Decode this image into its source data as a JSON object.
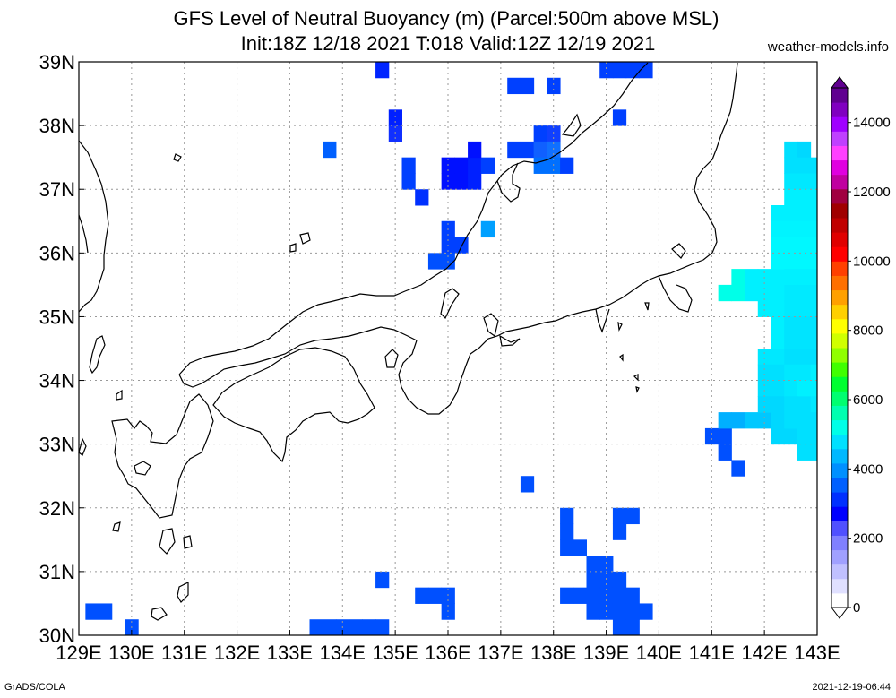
{
  "title_line1": "GFS Level of Neutral Buoyancy (m) (Parcel:500m above MSL)",
  "title_line2": "Init:18Z 12/18 2021 T:018 Valid:12Z 12/19 2021",
  "site": "weather-models.info",
  "footer_left": "GrADS/COLA",
  "footer_right": "2021-12-19-06:44",
  "map": {
    "lon_range": [
      129,
      143
    ],
    "lat_range": [
      30,
      39
    ],
    "lon_labels": [
      "129E",
      "130E",
      "131E",
      "132E",
      "133E",
      "134E",
      "135E",
      "136E",
      "137E",
      "138E",
      "139E",
      "140E",
      "141E",
      "142E",
      "143E"
    ],
    "lat_labels": [
      "30N",
      "31N",
      "32N",
      "33N",
      "34N",
      "35N",
      "36N",
      "37N",
      "38N",
      "39N"
    ],
    "grid": "dotted"
  },
  "colorbar": {
    "unit": "m",
    "labels": [
      "0",
      "2000",
      "4000",
      "6000",
      "8000",
      "10000",
      "12000",
      "14000"
    ],
    "colors": [
      "#ffffff",
      "#e0e0ff",
      "#c0c0ff",
      "#a0a0ff",
      "#8080ff",
      "#5050ff",
      "#0000ff",
      "#0030ff",
      "#0060ff",
      "#0090ff",
      "#00b8ff",
      "#00e0ff",
      "#00ffe8",
      "#00ffb0",
      "#00ff70",
      "#00ff30",
      "#40ff00",
      "#90ff00",
      "#d0ff00",
      "#ffff00",
      "#ffd000",
      "#ffa000",
      "#ff7000",
      "#ff4000",
      "#ff0000",
      "#e00000",
      "#c00000",
      "#a00000",
      "#a00040",
      "#c000a0",
      "#e000e0",
      "#ff40ff",
      "#c040ff",
      "#a000ff",
      "#8000c0",
      "#600090"
    ]
  },
  "cells": [
    {
      "lon": 134.75,
      "lat": 38.875,
      "c": "#0024ff"
    },
    {
      "lon": 137.25,
      "lat": 38.625,
      "c": "#0040ff"
    },
    {
      "lon": 137.5,
      "lat": 38.625,
      "c": "#0040ff"
    },
    {
      "lon": 138.0,
      "lat": 38.625,
      "c": "#0040ff"
    },
    {
      "lon": 139.0,
      "lat": 38.875,
      "c": "#0040ff"
    },
    {
      "lon": 139.25,
      "lat": 38.875,
      "c": "#0040ff"
    },
    {
      "lon": 139.5,
      "lat": 38.875,
      "c": "#0040ff"
    },
    {
      "lon": 139.75,
      "lat": 38.875,
      "c": "#0040ff"
    },
    {
      "lon": 135.0,
      "lat": 38.125,
      "c": "#0020ff"
    },
    {
      "lon": 135.0,
      "lat": 37.875,
      "c": "#1030ff"
    },
    {
      "lon": 139.25,
      "lat": 38.125,
      "c": "#0040ff"
    },
    {
      "lon": 133.75,
      "lat": 37.625,
      "c": "#0060ff"
    },
    {
      "lon": 135.25,
      "lat": 37.375,
      "c": "#0040ff"
    },
    {
      "lon": 135.25,
      "lat": 37.125,
      "c": "#0040ff"
    },
    {
      "lon": 135.5,
      "lat": 36.875,
      "c": "#0030ff"
    },
    {
      "lon": 136.0,
      "lat": 37.375,
      "c": "#0010ff"
    },
    {
      "lon": 136.0,
      "lat": 37.125,
      "c": "#0010ff"
    },
    {
      "lon": 136.25,
      "lat": 37.375,
      "c": "#0010ff"
    },
    {
      "lon": 136.25,
      "lat": 37.125,
      "c": "#0010ff"
    },
    {
      "lon": 136.5,
      "lat": 37.375,
      "c": "#0020ff"
    },
    {
      "lon": 136.5,
      "lat": 37.125,
      "c": "#0020ff"
    },
    {
      "lon": 136.75,
      "lat": 37.375,
      "c": "#0040ff"
    },
    {
      "lon": 136.5,
      "lat": 37.625,
      "c": "#0010ff"
    },
    {
      "lon": 137.25,
      "lat": 37.625,
      "c": "#0040ff"
    },
    {
      "lon": 137.5,
      "lat": 37.625,
      "c": "#0040ff"
    },
    {
      "lon": 137.75,
      "lat": 37.875,
      "c": "#0040ff"
    },
    {
      "lon": 138.0,
      "lat": 37.875,
      "c": "#1040ff"
    },
    {
      "lon": 137.75,
      "lat": 37.625,
      "c": "#1060ff"
    },
    {
      "lon": 138.0,
      "lat": 37.625,
      "c": "#1070ff"
    },
    {
      "lon": 137.75,
      "lat": 37.375,
      "c": "#0070ff"
    },
    {
      "lon": 138.0,
      "lat": 37.375,
      "c": "#0070ff"
    },
    {
      "lon": 138.25,
      "lat": 37.375,
      "c": "#0040ff"
    },
    {
      "lon": 136.0,
      "lat": 36.375,
      "c": "#0040ff"
    },
    {
      "lon": 136.0,
      "lat": 36.125,
      "c": "#0040ff"
    },
    {
      "lon": 136.25,
      "lat": 36.125,
      "c": "#0040ff"
    },
    {
      "lon": 135.75,
      "lat": 35.875,
      "c": "#0050ff"
    },
    {
      "lon": 136.0,
      "lat": 35.875,
      "c": "#0050ff"
    },
    {
      "lon": 136.75,
      "lat": 36.375,
      "c": "#00a0ff"
    },
    {
      "lon": 133.5,
      "lat": 30.125,
      "c": "#0050ff"
    },
    {
      "lon": 133.75,
      "lat": 30.125,
      "c": "#0050ff"
    },
    {
      "lon": 134.0,
      "lat": 30.125,
      "c": "#0050ff"
    },
    {
      "lon": 134.25,
      "lat": 30.125,
      "c": "#0050ff"
    },
    {
      "lon": 134.5,
      "lat": 30.125,
      "c": "#0050ff"
    },
    {
      "lon": 134.75,
      "lat": 30.125,
      "c": "#0050ff"
    },
    {
      "lon": 129.25,
      "lat": 30.375,
      "c": "#0050ff"
    },
    {
      "lon": 129.5,
      "lat": 30.375,
      "c": "#0050ff"
    },
    {
      "lon": 130.0,
      "lat": 30.125,
      "c": "#0050ff"
    },
    {
      "lon": 134.75,
      "lat": 30.875,
      "c": "#0050ff"
    },
    {
      "lon": 135.5,
      "lat": 30.625,
      "c": "#0050ff"
    },
    {
      "lon": 135.75,
      "lat": 30.625,
      "c": "#0050ff"
    },
    {
      "lon": 136.0,
      "lat": 30.625,
      "c": "#0050ff"
    },
    {
      "lon": 136.0,
      "lat": 30.375,
      "c": "#0050ff"
    },
    {
      "lon": 138.25,
      "lat": 30.625,
      "c": "#0050ff"
    },
    {
      "lon": 138.5,
      "lat": 30.625,
      "c": "#0050ff"
    },
    {
      "lon": 138.75,
      "lat": 30.625,
      "c": "#0050ff"
    },
    {
      "lon": 138.75,
      "lat": 30.375,
      "c": "#0050ff"
    },
    {
      "lon": 139.0,
      "lat": 30.375,
      "c": "#0050ff"
    },
    {
      "lon": 138.75,
      "lat": 31.125,
      "c": "#0050ff"
    },
    {
      "lon": 139.0,
      "lat": 31.125,
      "c": "#0050ff"
    },
    {
      "lon": 138.75,
      "lat": 30.875,
      "c": "#0050ff"
    },
    {
      "lon": 139.0,
      "lat": 30.875,
      "c": "#0050ff"
    },
    {
      "lon": 139.25,
      "lat": 30.875,
      "c": "#0050ff"
    },
    {
      "lon": 139.0,
      "lat": 30.625,
      "c": "#0050ff"
    },
    {
      "lon": 139.25,
      "lat": 30.625,
      "c": "#0050ff"
    },
    {
      "lon": 139.5,
      "lat": 30.625,
      "c": "#0050ff"
    },
    {
      "lon": 139.25,
      "lat": 30.375,
      "c": "#0050ff"
    },
    {
      "lon": 139.5,
      "lat": 30.375,
      "c": "#0050ff"
    },
    {
      "lon": 139.75,
      "lat": 30.375,
      "c": "#0050ff"
    },
    {
      "lon": 139.25,
      "lat": 30.125,
      "c": "#0050ff"
    },
    {
      "lon": 139.5,
      "lat": 30.125,
      "c": "#0050ff"
    },
    {
      "lon": 138.25,
      "lat": 31.875,
      "c": "#0050ff"
    },
    {
      "lon": 138.25,
      "lat": 31.625,
      "c": "#0050ff"
    },
    {
      "lon": 138.25,
      "lat": 31.375,
      "c": "#0050ff"
    },
    {
      "lon": 138.5,
      "lat": 31.375,
      "c": "#0050ff"
    },
    {
      "lon": 139.25,
      "lat": 31.875,
      "c": "#0050ff"
    },
    {
      "lon": 139.5,
      "lat": 31.875,
      "c": "#0050ff"
    },
    {
      "lon": 139.25,
      "lat": 31.625,
      "c": "#0050ff"
    },
    {
      "lon": 137.5,
      "lat": 32.375,
      "c": "#0050ff"
    },
    {
      "lon": 141.0,
      "lat": 33.125,
      "c": "#0050ff"
    },
    {
      "lon": 141.25,
      "lat": 33.125,
      "c": "#0050ff"
    },
    {
      "lon": 141.25,
      "lat": 32.875,
      "c": "#0050ff"
    },
    {
      "lon": 141.5,
      "lat": 32.625,
      "c": "#0050ff"
    },
    {
      "lon": 141.25,
      "lat": 33.375,
      "c": "#00b0ff"
    },
    {
      "lon": 141.5,
      "lat": 33.375,
      "c": "#00b0ff"
    },
    {
      "lon": 141.75,
      "lat": 33.375,
      "c": "#00c8ff"
    },
    {
      "lon": 142.0,
      "lat": 33.375,
      "c": "#00c8ff"
    },
    {
      "lon": 142.25,
      "lat": 33.375,
      "c": "#00d8ff"
    },
    {
      "lon": 142.25,
      "lat": 33.125,
      "c": "#00d8ff"
    },
    {
      "lon": 142.5,
      "lat": 33.125,
      "c": "#00d8ff"
    },
    {
      "lon": 142.75,
      "lat": 33.125,
      "c": "#00e0ff"
    },
    {
      "lon": 142.75,
      "lat": 32.875,
      "c": "#00e0ff"
    },
    {
      "lon": 141.25,
      "lat": 35.375,
      "c": "#00ffe8"
    },
    {
      "lon": 141.5,
      "lat": 35.625,
      "c": "#00ffe8"
    },
    {
      "lon": 141.5,
      "lat": 35.375,
      "c": "#00ffe8"
    },
    {
      "lon": 141.75,
      "lat": 35.625,
      "c": "#00f0ff"
    },
    {
      "lon": 141.75,
      "lat": 35.375,
      "c": "#00f0ff"
    },
    {
      "lon": 142.0,
      "lat": 35.625,
      "c": "#00f0ff"
    },
    {
      "lon": 142.0,
      "lat": 35.375,
      "c": "#00f0ff"
    },
    {
      "lon": 142.0,
      "lat": 35.125,
      "c": "#00f0ff"
    },
    {
      "lon": 142.25,
      "lat": 35.625,
      "c": "#00f0ff"
    },
    {
      "lon": 142.25,
      "lat": 35.375,
      "c": "#00f0ff"
    },
    {
      "lon": 142.25,
      "lat": 35.125,
      "c": "#00f0ff"
    },
    {
      "lon": 142.25,
      "lat": 34.875,
      "c": "#00f0ff"
    },
    {
      "lon": 142.25,
      "lat": 34.625,
      "c": "#00f0ff"
    },
    {
      "lon": 142.0,
      "lat": 34.375,
      "c": "#00e8ff"
    },
    {
      "lon": 142.25,
      "lat": 34.375,
      "c": "#00e8ff"
    },
    {
      "lon": 142.0,
      "lat": 34.125,
      "c": "#00e0ff"
    },
    {
      "lon": 142.25,
      "lat": 34.125,
      "c": "#00e0ff"
    },
    {
      "lon": 142.0,
      "lat": 33.875,
      "c": "#00e0ff"
    },
    {
      "lon": 142.25,
      "lat": 33.875,
      "c": "#00e0ff"
    },
    {
      "lon": 142.0,
      "lat": 33.625,
      "c": "#00d8ff"
    },
    {
      "lon": 142.25,
      "lat": 33.625,
      "c": "#00d8ff"
    },
    {
      "lon": 142.5,
      "lat": 37.625,
      "c": "#00e0ff"
    },
    {
      "lon": 142.75,
      "lat": 37.625,
      "c": "#00d8ff"
    },
    {
      "lon": 142.5,
      "lat": 37.375,
      "c": "#00e0ff"
    },
    {
      "lon": 142.75,
      "lat": 37.375,
      "c": "#00e0ff"
    },
    {
      "lon": 143.0,
      "lat": 37.375,
      "c": "#00e0ff"
    },
    {
      "lon": 142.5,
      "lat": 37.125,
      "c": "#00e8ff"
    },
    {
      "lon": 142.75,
      "lat": 37.125,
      "c": "#00e8ff"
    },
    {
      "lon": 143.0,
      "lat": 37.125,
      "c": "#00e8ff"
    },
    {
      "lon": 142.5,
      "lat": 36.875,
      "c": "#00f0ff"
    },
    {
      "lon": 142.75,
      "lat": 36.875,
      "c": "#00f0ff"
    },
    {
      "lon": 143.0,
      "lat": 36.875,
      "c": "#00f0ff"
    },
    {
      "lon": 142.25,
      "lat": 36.625,
      "c": "#00f0ff"
    },
    {
      "lon": 142.5,
      "lat": 36.625,
      "c": "#00f0ff"
    },
    {
      "lon": 142.75,
      "lat": 36.625,
      "c": "#00f0ff"
    },
    {
      "lon": 143.0,
      "lat": 36.625,
      "c": "#00f0ff"
    },
    {
      "lon": 142.25,
      "lat": 36.375,
      "c": "#00f4ff"
    },
    {
      "lon": 142.5,
      "lat": 36.375,
      "c": "#00f4ff"
    },
    {
      "lon": 142.75,
      "lat": 36.375,
      "c": "#00f4ff"
    },
    {
      "lon": 143.0,
      "lat": 36.375,
      "c": "#00f4ff"
    },
    {
      "lon": 142.25,
      "lat": 36.125,
      "c": "#00f8ff"
    },
    {
      "lon": 142.5,
      "lat": 36.125,
      "c": "#00f8ff"
    },
    {
      "lon": 142.75,
      "lat": 36.125,
      "c": "#00f8ff"
    },
    {
      "lon": 143.0,
      "lat": 36.125,
      "c": "#00f8ff"
    },
    {
      "lon": 142.25,
      "lat": 35.875,
      "c": "#00f8ff"
    },
    {
      "lon": 142.5,
      "lat": 35.875,
      "c": "#00f8ff"
    },
    {
      "lon": 142.75,
      "lat": 35.875,
      "c": "#00f8ff"
    },
    {
      "lon": 143.0,
      "lat": 35.875,
      "c": "#00f8ff"
    },
    {
      "lon": 142.5,
      "lat": 35.625,
      "c": "#00f0ff"
    },
    {
      "lon": 142.75,
      "lat": 35.625,
      "c": "#00f0ff"
    },
    {
      "lon": 143.0,
      "lat": 35.625,
      "c": "#00f0ff"
    },
    {
      "lon": 142.5,
      "lat": 35.375,
      "c": "#00eaff"
    },
    {
      "lon": 142.75,
      "lat": 35.375,
      "c": "#00eaff"
    },
    {
      "lon": 143.0,
      "lat": 35.375,
      "c": "#00eaff"
    },
    {
      "lon": 142.5,
      "lat": 35.125,
      "c": "#00eaff"
    },
    {
      "lon": 142.75,
      "lat": 35.125,
      "c": "#00eaff"
    },
    {
      "lon": 143.0,
      "lat": 35.125,
      "c": "#00eaff"
    },
    {
      "lon": 142.5,
      "lat": 34.875,
      "c": "#00e4ff"
    },
    {
      "lon": 142.75,
      "lat": 34.875,
      "c": "#00e4ff"
    },
    {
      "lon": 143.0,
      "lat": 34.875,
      "c": "#00e4ff"
    },
    {
      "lon": 142.5,
      "lat": 34.625,
      "c": "#00e4ff"
    },
    {
      "lon": 142.75,
      "lat": 34.625,
      "c": "#00e4ff"
    },
    {
      "lon": 143.0,
      "lat": 34.625,
      "c": "#00e4ff"
    },
    {
      "lon": 142.5,
      "lat": 34.375,
      "c": "#00e0ff"
    },
    {
      "lon": 142.75,
      "lat": 34.375,
      "c": "#00e0ff"
    },
    {
      "lon": 143.0,
      "lat": 34.375,
      "c": "#00e0ff"
    },
    {
      "lon": 142.5,
      "lat": 34.125,
      "c": "#00e8ff"
    },
    {
      "lon": 142.75,
      "lat": 34.125,
      "c": "#00e8ff"
    },
    {
      "lon": 143.0,
      "lat": 34.125,
      "c": "#00f0ff"
    },
    {
      "lon": 142.5,
      "lat": 33.875,
      "c": "#00e8ff"
    },
    {
      "lon": 142.75,
      "lat": 33.875,
      "c": "#00f0ff"
    },
    {
      "lon": 143.0,
      "lat": 33.875,
      "c": "#00f0ff"
    },
    {
      "lon": 142.5,
      "lat": 33.625,
      "c": "#00e0ff"
    },
    {
      "lon": 142.75,
      "lat": 33.625,
      "c": "#00e0ff"
    },
    {
      "lon": 143.0,
      "lat": 33.625,
      "c": "#00e8ff"
    },
    {
      "lon": 142.5,
      "lat": 33.375,
      "c": "#00e0ff"
    },
    {
      "lon": 142.75,
      "lat": 33.375,
      "c": "#00e0ff"
    },
    {
      "lon": 143.0,
      "lat": 33.375,
      "c": "#00e0ff"
    },
    {
      "lon": 143.0,
      "lat": 33.125,
      "c": "#00e0ff"
    },
    {
      "lon": 143.0,
      "lat": 32.875,
      "c": "#00e0ff"
    }
  ]
}
